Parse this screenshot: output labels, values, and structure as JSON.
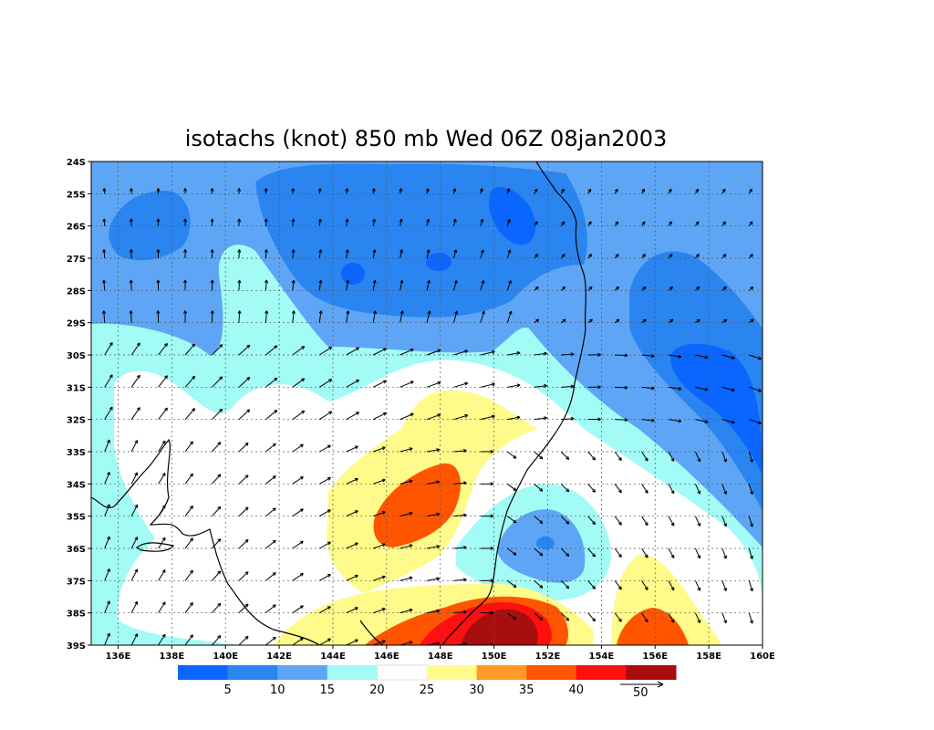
{
  "title": "isotachs (knot) 850 mb Wed 06Z 08jan2003",
  "colors": {
    "c1": "#0a66ff",
    "c2": "#2a85f0",
    "c3": "#5ea6f5",
    "c4": "#a3fbf5",
    "c5": "#ffffff",
    "c6": "#fffb8a",
    "c7": "#ff9a28",
    "c8": "#ff5500",
    "c9": "#ff0f0f",
    "c10": "#a80e0e"
  },
  "lat_labels": [
    "24S",
    "25S",
    "26S",
    "27S",
    "28S",
    "29S",
    "30S",
    "31S",
    "32S",
    "33S",
    "34S",
    "35S",
    "36S",
    "37S",
    "38S",
    "39S"
  ],
  "lon_labels": [
    "136E",
    "138E",
    "140E",
    "142E",
    "144E",
    "146E",
    "148E",
    "150E",
    "152E",
    "154E",
    "156E",
    "158E",
    "160E"
  ],
  "colorbar": {
    "labels": [
      "5",
      "10",
      "15",
      "20",
      "25",
      "30",
      "35",
      "40"
    ],
    "vector_label": "50"
  }
}
